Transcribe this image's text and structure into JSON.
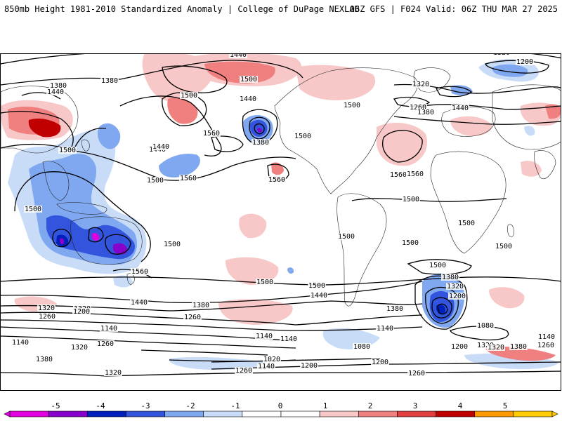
{
  "header": {
    "title_left": "850mb Height 1981-2010 Standardized Anomaly | College of DuPage NEXLAB",
    "title_right": "06Z GFS | F024 Valid: 06Z THU MAR 27 2025"
  },
  "colorbar": {
    "ticks": [
      "-5",
      "-4",
      "-3",
      "-2",
      "-1",
      "0",
      "1",
      "2",
      "3",
      "4",
      "5"
    ],
    "colors": [
      "#e000e0",
      "#8800cc",
      "#0022bb",
      "#3355dd",
      "#7fa8f0",
      "#c8dcf8",
      "#ffffff",
      "#ffffff",
      "#f8c8c8",
      "#f08080",
      "#e04040",
      "#c00000",
      "#ff9900",
      "#ffcc00"
    ]
  },
  "anomaly_colors": {
    "neg1": "#c8dcf8",
    "neg2": "#7fa8f0",
    "neg3": "#3355dd",
    "neg4": "#0022bb",
    "neg5": "#8800cc",
    "neg6": "#e000e0",
    "pos1": "#f8c8c8",
    "pos2": "#f08080",
    "pos3": "#e04040",
    "pos4": "#c00000"
  },
  "contour_labels": [
    "1380",
    "1320",
    "1440",
    "1500",
    "1200",
    "1380",
    "1440",
    "1380",
    "1500",
    "1320",
    "1440",
    "1260",
    "1380",
    "1500",
    "1440",
    "1560",
    "1500",
    "1440",
    "1560",
    "1500",
    "1380",
    "1440",
    "1500",
    "1500",
    "1560",
    "1560",
    "1500",
    "1500",
    "1500",
    "1500",
    "1500",
    "1500",
    "1500",
    "1560",
    "1560",
    "1500",
    "1500",
    "1440",
    "1320",
    "1200",
    "1500",
    "1380",
    "1440",
    "1380",
    "1320",
    "1320",
    "1200",
    "1380",
    "1260",
    "1260",
    "1080",
    "1140",
    "1140",
    "1140",
    "1200",
    "1320",
    "1260",
    "1140",
    "1080",
    "1020",
    "1140",
    "1200",
    "1140",
    "1260",
    "1380",
    "1320",
    "1320",
    "1260",
    "1200",
    "1260",
    "1140",
    "1320",
    "1380"
  ]
}
